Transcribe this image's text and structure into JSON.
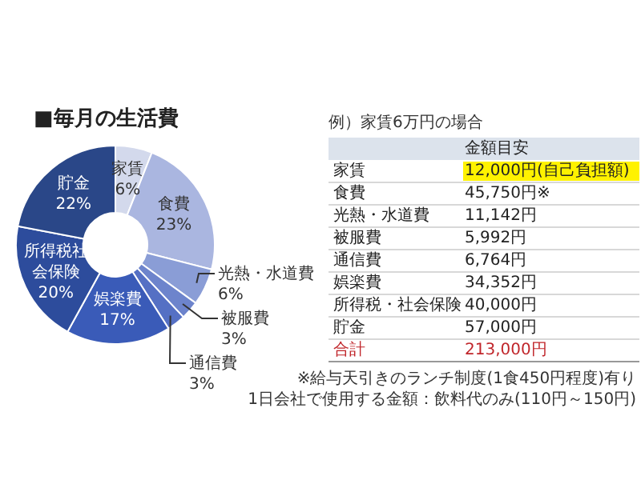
{
  "chart_data": {
    "type": "donut",
    "title": "■毎月の生活費",
    "categories": [
      "家賃",
      "食費",
      "光熱・水道費",
      "被服費",
      "通信費",
      "娯楽費",
      "所得税社会保険",
      "貯金"
    ],
    "values": [
      6,
      23,
      6,
      3,
      3,
      17,
      20,
      22
    ],
    "colors": [
      "#d3d9ec",
      "#aab6e0",
      "#8a9dd6",
      "#6d84cc",
      "#5570c4",
      "#3a5bb8",
      "#2d4c9c",
      "#2a4788"
    ],
    "value_labels": [
      "6%",
      "23%",
      "6%",
      "3%",
      "3%",
      "17%",
      "20%",
      "22%"
    ],
    "legend": false,
    "annotations": [
      "例）家賃6万円の場合",
      "金額目安",
      "家賃",
      "12,000円(自己負担額)",
      "食費",
      "45,750円※",
      "光熱・水道費",
      "11,142円",
      "被服費",
      "5,992円",
      "通信費",
      "6,764円",
      "娯楽費",
      "34,352円",
      "所得税・社会保険",
      "40,000円",
      "貯金",
      "57,000円",
      "合計",
      "213,000円",
      "※給与天引きのランチ制度(1食450円程度)有り",
      "1日会社で使用する金額：飲料代のみ(110円～150円)"
    ]
  }
}
